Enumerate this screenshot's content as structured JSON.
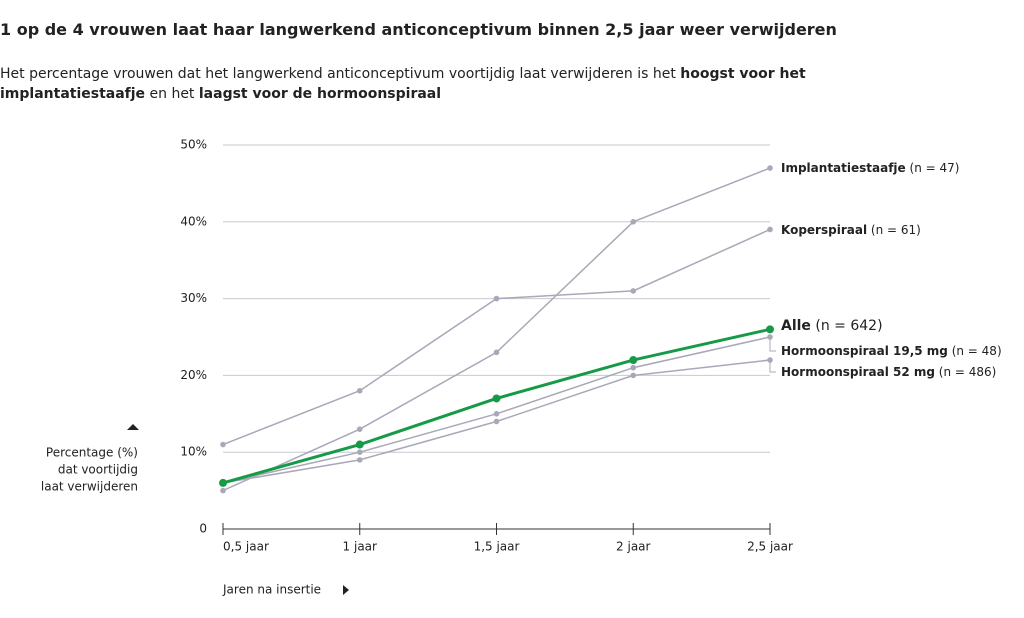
{
  "chart_data": {
    "type": "line",
    "title": "1 op de 4 vrouwen laat haar langwerkend anticonceptivum binnen 2,5 jaar weer verwijderen",
    "subtitle": [
      {
        "text": "Het percentage vrouwen dat het langwerkend anticonceptivum voortijdig laat verwijderen is het ",
        "bold": false
      },
      {
        "text": "hoogst voor het implantatiestaafje",
        "bold": true
      },
      {
        "text": " en het ",
        "bold": false
      },
      {
        "text": "laagst voor de hormoonspiraal",
        "bold": true
      }
    ],
    "y_label": [
      "Percentage (%)",
      "dat voortijdig",
      "laat verwijderen"
    ],
    "x_label": "Jaren na insertie",
    "categories": [
      "0,5 jaar",
      "1 jaar",
      "1,5 jaar",
      "2 jaar",
      "2,5 jaar"
    ],
    "ylim": [
      0,
      50
    ],
    "yticks": [
      0,
      {
        "value": 10,
        "label": "10%"
      },
      {
        "value": 20,
        "label": "20%"
      },
      {
        "value": 30,
        "label": "30%"
      },
      {
        "value": 40,
        "label": "40%"
      },
      {
        "value": 50,
        "label": "50%"
      }
    ],
    "grid": true,
    "series": [
      {
        "name": "Implantatiestaafje",
        "n": "(n = 47)",
        "color": "#a9a8b8",
        "values": [
          5,
          13,
          23,
          40,
          47
        ]
      },
      {
        "name": "Koperspiraal",
        "n": "(n = 61)",
        "color": "#a9a8b8",
        "values": [
          11,
          18,
          30,
          31,
          39
        ]
      },
      {
        "name": "Alle",
        "n": "(n = 642)",
        "color": "#179a47",
        "values": [
          6,
          11,
          17,
          22,
          26
        ]
      },
      {
        "name": "Hormoonspiraal 19,5 mg",
        "n": "(n = 48)",
        "color": "#a9a8b8",
        "values": [
          6,
          10,
          15,
          21,
          25
        ]
      },
      {
        "name": "Hormoonspiraal 52 mg",
        "n": "(n = 486)",
        "color": "#a9a8b8",
        "values": [
          6,
          9,
          14,
          20,
          22
        ]
      }
    ]
  }
}
